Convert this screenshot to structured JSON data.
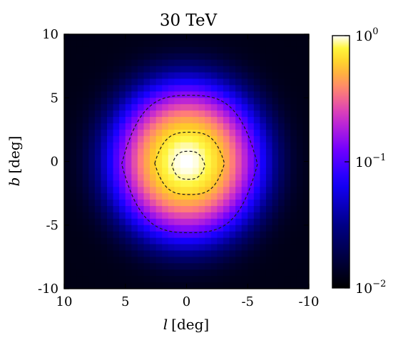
{
  "chart_data": {
    "type": "heatmap",
    "title": "30 TeV",
    "xlabel_var": "l",
    "xlabel_unit": "[deg]",
    "ylabel_var": "b",
    "ylabel_unit": "[deg]",
    "xlim": [
      10,
      -10
    ],
    "ylim": [
      -10,
      10
    ],
    "x_inverted": true,
    "xticks": [
      10,
      5,
      0,
      -5,
      -10
    ],
    "xtick_labels": [
      "10",
      "5",
      "0",
      "-5",
      "-10"
    ],
    "yticks": [
      10,
      5,
      0,
      -5,
      -10
    ],
    "ytick_labels": [
      "10",
      "5",
      "0",
      "-5",
      "-10"
    ],
    "grid": false,
    "colormap": "gnuplot2",
    "color_scale": "log",
    "colorbar": {
      "range": [
        0.01,
        1
      ],
      "ticks": [
        {
          "value": 1,
          "base": "10",
          "exp": "0"
        },
        {
          "value": 0.1,
          "base": "10",
          "exp": "−1"
        },
        {
          "value": 0.01,
          "base": "10",
          "exp": "−2"
        }
      ]
    },
    "peak": {
      "l": 0,
      "b": 0,
      "value": 1
    },
    "source_model": {
      "sigma_l_deg": 2.6,
      "sigma_b_deg": 2.6,
      "background_value": 0.012
    },
    "grid_cells": 40,
    "contours": [
      {
        "l_extent": [
          5.3,
          -5.8
        ],
        "b_extent": [
          -5.6,
          5.2
        ],
        "style": "dashed"
      },
      {
        "l_extent": [
          2.6,
          -3.1
        ],
        "b_extent": [
          -2.6,
          2.3
        ],
        "style": "dashed"
      },
      {
        "l_extent": [
          1.2,
          -1.5
        ],
        "b_extent": [
          -1.4,
          0.8
        ],
        "style": "dashed"
      }
    ]
  }
}
